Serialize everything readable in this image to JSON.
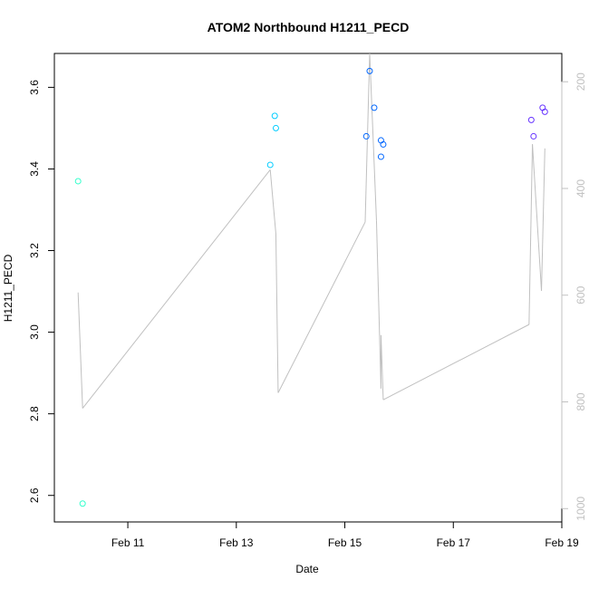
{
  "chart_data": {
    "type": "scatter",
    "title": "ATOM2 Northbound H1211_PECD",
    "xlabel": "Date",
    "ylabel": "H1211_PECD",
    "x_ticks": [
      {
        "label": "Feb 11",
        "value": "2025-02-11"
      },
      {
        "label": "Feb 13",
        "value": "2025-02-13"
      },
      {
        "label": "Feb 15",
        "value": "2025-02-15"
      },
      {
        "label": "Feb 17",
        "value": "2025-02-17"
      },
      {
        "label": "Feb 19",
        "value": "2025-02-19"
      }
    ],
    "xlim": [
      "2025-02-09 15:30",
      "2025-02-19 00:00"
    ],
    "ylim": [
      2.535,
      3.683
    ],
    "y_ticks": [
      2.6,
      2.8,
      3.0,
      3.2,
      3.4,
      3.6
    ],
    "y_tick_labels": [
      "2.6",
      "2.8",
      "3.0",
      "3.2",
      "3.4",
      "3.6"
    ],
    "right_axis": {
      "ticks": [
        200,
        400,
        600,
        800,
        1000
      ],
      "tick_labels": [
        "200",
        "400",
        "600",
        "800",
        "1000"
      ],
      "lim": [
        1025,
        147
      ],
      "color": "#c0c0c0"
    },
    "points": [
      {
        "x": "2025-02-10 02:00",
        "y": 3.37,
        "color": "#33ffcc"
      },
      {
        "x": "2025-02-10 04:00",
        "y": 2.58,
        "color": "#33ffcc"
      },
      {
        "x": "2025-02-13 15:00",
        "y": 3.41,
        "color": "#00ccff"
      },
      {
        "x": "2025-02-13 17:00",
        "y": 3.53,
        "color": "#00ccff"
      },
      {
        "x": "2025-02-13 17:30",
        "y": 3.5,
        "color": "#00ccff"
      },
      {
        "x": "2025-02-15 09:30",
        "y": 3.48,
        "color": "#0066ff"
      },
      {
        "x": "2025-02-15 11:00",
        "y": 3.64,
        "color": "#0066ff"
      },
      {
        "x": "2025-02-15 13:00",
        "y": 3.55,
        "color": "#0066ff"
      },
      {
        "x": "2025-02-15 16:00",
        "y": 3.47,
        "color": "#0066ff"
      },
      {
        "x": "2025-02-15 16:00",
        "y": 3.43,
        "color": "#0066ff"
      },
      {
        "x": "2025-02-15 17:00",
        "y": 3.46,
        "color": "#0066ff"
      },
      {
        "x": "2025-02-18 10:30",
        "y": 3.52,
        "color": "#6633ff"
      },
      {
        "x": "2025-02-18 11:30",
        "y": 3.48,
        "color": "#6633ff"
      },
      {
        "x": "2025-02-18 15:30",
        "y": 3.55,
        "color": "#6633ff"
      },
      {
        "x": "2025-02-18 16:30",
        "y": 3.54,
        "color": "#6633ff"
      }
    ],
    "line_series": {
      "axis": "right",
      "color": "#c0c0c0",
      "points": [
        {
          "x": "2025-02-10 02:00",
          "y": 595
        },
        {
          "x": "2025-02-10 04:00",
          "y": 812
        },
        {
          "x": "2025-02-13 15:00",
          "y": 365
        },
        {
          "x": "2025-02-13 17:30",
          "y": 485
        },
        {
          "x": "2025-02-13 18:30",
          "y": 783
        },
        {
          "x": "2025-02-15 09:00",
          "y": 463
        },
        {
          "x": "2025-02-15 11:00",
          "y": 147
        },
        {
          "x": "2025-02-15 14:00",
          "y": 460
        },
        {
          "x": "2025-02-15 16:00",
          "y": 775
        },
        {
          "x": "2025-02-15 16:00",
          "y": 675
        },
        {
          "x": "2025-02-15 17:00",
          "y": 796
        },
        {
          "x": "2025-02-18 09:30",
          "y": 655
        },
        {
          "x": "2025-02-18 11:00",
          "y": 317
        },
        {
          "x": "2025-02-18 15:00",
          "y": 592
        },
        {
          "x": "2025-02-18 16:30",
          "y": 325
        }
      ]
    },
    "grid": false,
    "legend": "none"
  }
}
